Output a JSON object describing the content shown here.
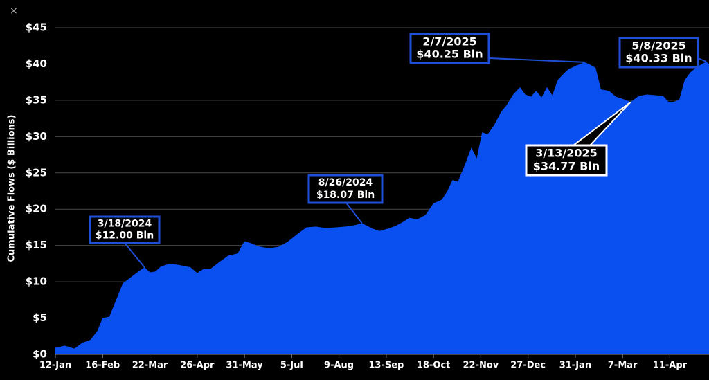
{
  "chart_data": {
    "type": "area",
    "y_label": "Cumulative Flows ($ Billions)",
    "color": "#0a4ff0",
    "grid": true,
    "xlim": [
      0,
      484
    ],
    "ylim": [
      0,
      45
    ],
    "xticks": [
      {
        "value": 0,
        "label": "12-Jan"
      },
      {
        "value": 35,
        "label": "16-Feb"
      },
      {
        "value": 70,
        "label": "22-Mar"
      },
      {
        "value": 105,
        "label": "26-Apr"
      },
      {
        "value": 140,
        "label": "31-May"
      },
      {
        "value": 175,
        "label": "5-Jul"
      },
      {
        "value": 210,
        "label": "9-Aug"
      },
      {
        "value": 245,
        "label": "13-Sep"
      },
      {
        "value": 280,
        "label": "18-Oct"
      },
      {
        "value": 315,
        "label": "22-Nov"
      },
      {
        "value": 350,
        "label": "27-Dec"
      },
      {
        "value": 385,
        "label": "31-Jan"
      },
      {
        "value": 420,
        "label": "7-Mar"
      },
      {
        "value": 455,
        "label": "11-Apr"
      }
    ],
    "yticks": [
      {
        "value": 0,
        "label": "$0"
      },
      {
        "value": 5,
        "label": "$5"
      },
      {
        "value": 10,
        "label": "$10"
      },
      {
        "value": 15,
        "label": "$15"
      },
      {
        "value": 20,
        "label": "$20"
      },
      {
        "value": 25,
        "label": "$25"
      },
      {
        "value": 30,
        "label": "$30"
      },
      {
        "value": 35,
        "label": "$35"
      },
      {
        "value": 40,
        "label": "$40"
      },
      {
        "value": 45,
        "label": "$45"
      }
    ],
    "x": [
      0,
      7,
      14,
      20,
      26,
      31,
      35,
      40,
      45,
      50,
      55,
      60,
      66,
      70,
      74,
      78,
      85,
      92,
      100,
      105,
      110,
      115,
      122,
      128,
      135,
      140,
      145,
      150,
      158,
      165,
      172,
      180,
      186,
      193,
      200,
      208,
      215,
      222,
      227,
      235,
      240,
      246,
      252,
      258,
      262,
      268,
      274,
      280,
      286,
      290,
      294,
      298,
      303,
      308,
      312,
      316,
      320,
      325,
      330,
      334,
      339,
      344,
      348,
      352,
      356,
      360,
      364,
      368,
      372,
      376,
      380,
      386,
      392,
      396,
      400,
      404,
      410,
      415,
      420,
      426,
      432,
      438,
      444,
      450,
      454,
      458,
      462,
      466,
      470,
      475,
      482,
      484
    ],
    "values": [
      0.9,
      1.2,
      0.8,
      1.6,
      2.0,
      3.2,
      5.0,
      5.2,
      7.5,
      9.8,
      10.5,
      11.2,
      12.0,
      11.3,
      11.4,
      12.1,
      12.5,
      12.3,
      12.0,
      11.2,
      11.8,
      11.8,
      12.8,
      13.6,
      13.9,
      15.6,
      15.3,
      14.9,
      14.6,
      14.8,
      15.5,
      16.7,
      17.5,
      17.6,
      17.4,
      17.5,
      17.6,
      17.8,
      18.07,
      17.3,
      17.0,
      17.3,
      17.7,
      18.3,
      18.8,
      18.6,
      19.2,
      20.8,
      21.3,
      22.4,
      24.0,
      23.8,
      26.0,
      28.5,
      27.0,
      30.6,
      30.3,
      31.6,
      33.4,
      34.3,
      35.8,
      36.8,
      35.8,
      35.5,
      36.3,
      35.4,
      36.8,
      35.7,
      37.8,
      38.6,
      39.3,
      39.8,
      40.25,
      39.9,
      39.5,
      36.5,
      36.3,
      35.5,
      35.2,
      34.77,
      35.6,
      35.8,
      35.7,
      35.6,
      34.8,
      34.8,
      35.1,
      37.8,
      38.8,
      39.6,
      40.33,
      40.0
    ],
    "annotations": [
      {
        "date": "3/18/2024",
        "text": "$12.00 Bln",
        "x": 66,
        "value": 12.0
      },
      {
        "date": "8/26/2024",
        "text": "$18.07 Bln",
        "x": 227,
        "value": 18.07
      },
      {
        "date": "2/7/2025",
        "text": "$40.25 Bln",
        "x": 392,
        "value": 40.25
      },
      {
        "date": "3/13/2025",
        "text": "$34.77 Bln",
        "x": 426,
        "value": 34.77
      },
      {
        "date": "5/8/2025",
        "text": "$40.33 Bln",
        "x": 482,
        "value": 40.33
      }
    ]
  }
}
